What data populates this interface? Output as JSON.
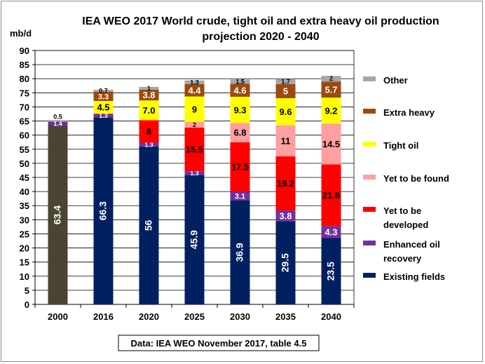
{
  "chart_data": {
    "type": "bar",
    "stacked": true,
    "title_line1": "IEA WEO 2017 World crude, tight oil and extra heavy oil production",
    "title_line2": "projection 2020 - 2040",
    "ylabel": "mb/d",
    "ylim": [
      0,
      90
    ],
    "ytick_step": 5,
    "grid": true,
    "legend_position": "right",
    "source_note": "Data: IEA WEO November 2017, table 4.5",
    "categories": [
      "2000",
      "2016",
      "2020",
      "2025",
      "2030",
      "2035",
      "2040"
    ],
    "historical_2000": {
      "color": "#4a4530",
      "segments": [
        {
          "value": 63.4,
          "label": "63.4",
          "color": "#4a4530",
          "text_color": "#ffffff",
          "rotated": true
        },
        {
          "value": 1.4,
          "label": "1.4",
          "color": "#7030a0",
          "text_color": "#ffffff",
          "rotated": false
        },
        {
          "value": 0.5,
          "label": "0.5",
          "color": "#a0a0a0",
          "text_color": "#000000",
          "rotated": false
        }
      ]
    },
    "series": [
      {
        "name": "Existing fields",
        "color": "#002060",
        "text_color": "#ffffff",
        "rotated": true,
        "values": [
          null,
          66.3,
          56,
          45.9,
          36.9,
          29.5,
          23.5
        ]
      },
      {
        "name": "Enhanced oil recovery",
        "color": "#7030a0",
        "text_color": "#ffffff",
        "rotated": false,
        "values": [
          null,
          1.3,
          1.3,
          1.3,
          3.1,
          3.8,
          4.3
        ]
      },
      {
        "name": "Yet to be developed",
        "color": "#ff0000",
        "text_color": "#000000",
        "rotated": false,
        "values": [
          null,
          null,
          8,
          15.5,
          17.5,
          19.2,
          21.8
        ]
      },
      {
        "name": "Yet to be found",
        "color": "#ff9f9f",
        "text_color": "#000000",
        "rotated": false,
        "values": [
          null,
          null,
          null,
          2,
          6.8,
          11,
          14.5
        ]
      },
      {
        "name": "Tight oil",
        "color": "#ffff00",
        "text_color": "#000000",
        "rotated": false,
        "values": [
          null,
          4.5,
          7.0,
          9,
          9.3,
          9.6,
          9.2
        ]
      },
      {
        "name": "Extra heavy",
        "color": "#9c4a0d",
        "text_color": "#ffffff",
        "rotated": false,
        "values": [
          null,
          3.3,
          3.8,
          4.4,
          4.6,
          5,
          5.7
        ]
      },
      {
        "name": "Other",
        "color": "#a6a6a6",
        "text_color": "#000000",
        "rotated": false,
        "values": [
          null,
          0.7,
          1,
          1.3,
          1.5,
          1.7,
          2
        ]
      }
    ],
    "value_labels": {
      "Existing fields": [
        "",
        "66.3",
        "56",
        "45.9",
        "36.9",
        "29.5",
        "23.5"
      ],
      "Enhanced oil recovery": [
        "",
        "1.3",
        "1.3",
        "1.3",
        "3.1",
        "3.8",
        "4.3"
      ],
      "Yet to be developed": [
        "",
        "",
        "8",
        "15.5",
        "17.5",
        "19.2",
        "21.8"
      ],
      "Yet to be found": [
        "",
        "",
        "",
        "2",
        "6.8",
        "11",
        "14.5"
      ],
      "Tight oil": [
        "",
        "4.5",
        "7.0",
        "9",
        "9.3",
        "9.6",
        "9.2"
      ],
      "Extra heavy": [
        "",
        "3.3",
        "3.8",
        "4.4",
        "4.6",
        "5",
        "5.7"
      ],
      "Other": [
        "",
        "0.7",
        "1",
        "1.3",
        "1.5",
        "1.7",
        "2"
      ]
    },
    "legend": [
      {
        "label_lines": [
          "Other"
        ],
        "color": "#a6a6a6"
      },
      {
        "label_lines": [
          "Extra heavy"
        ],
        "color": "#9c4a0d"
      },
      {
        "label_lines": [
          "Tight oil"
        ],
        "color": "#ffff00"
      },
      {
        "label_lines": [
          "Yet to be found"
        ],
        "color": "#ff9f9f"
      },
      {
        "label_lines": [
          "Yet to be",
          "developed"
        ],
        "color": "#ff0000"
      },
      {
        "label_lines": [
          "Enhanced oil",
          "recovery"
        ],
        "color": "#7030a0"
      },
      {
        "label_lines": [
          "Existing fields"
        ],
        "color": "#002060"
      }
    ]
  }
}
